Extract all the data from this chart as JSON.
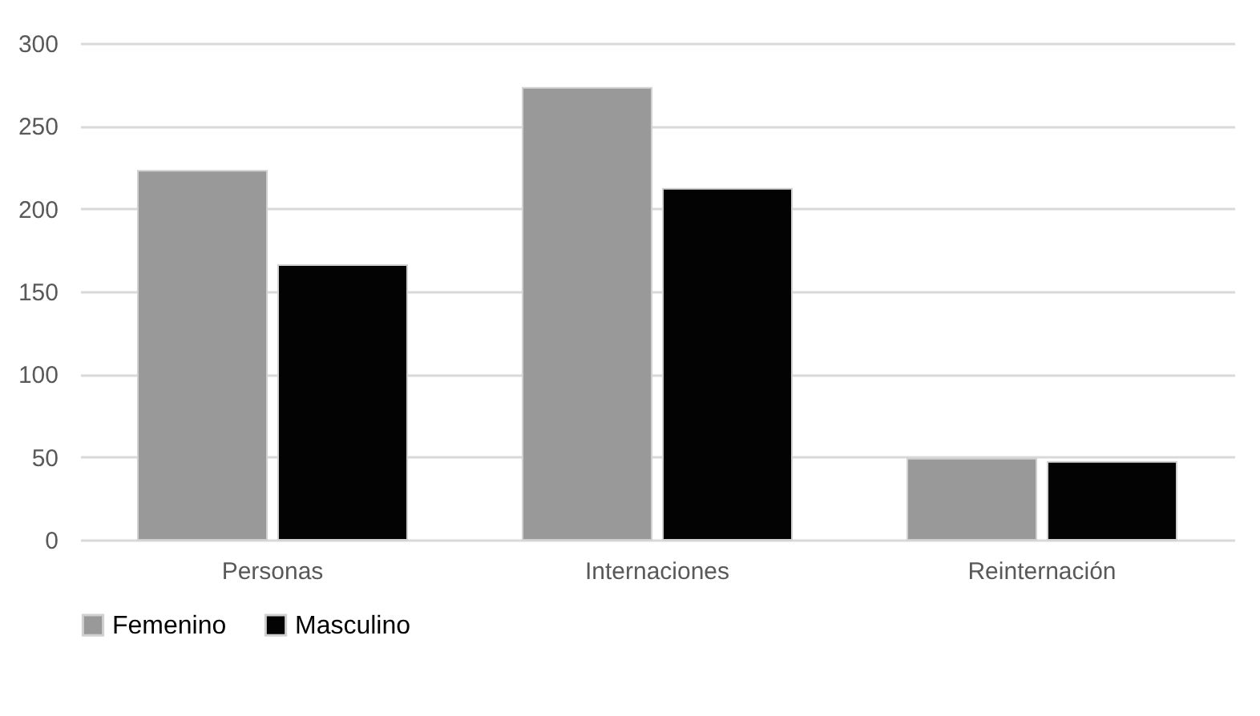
{
  "chart_data": {
    "type": "bar",
    "categories": [
      "Personas",
      "Internaciones",
      "Reinternación"
    ],
    "series": [
      {
        "name": "Femenino",
        "color": "#999999",
        "values": [
          223,
          273,
          49
        ]
      },
      {
        "name": "Masculino",
        "color": "#030303",
        "values": [
          166,
          212,
          47
        ]
      }
    ],
    "ylim": [
      0,
      300
    ],
    "yticks": [
      0,
      50,
      100,
      150,
      200,
      250,
      300
    ],
    "grid": "y",
    "legend": "bottom"
  }
}
